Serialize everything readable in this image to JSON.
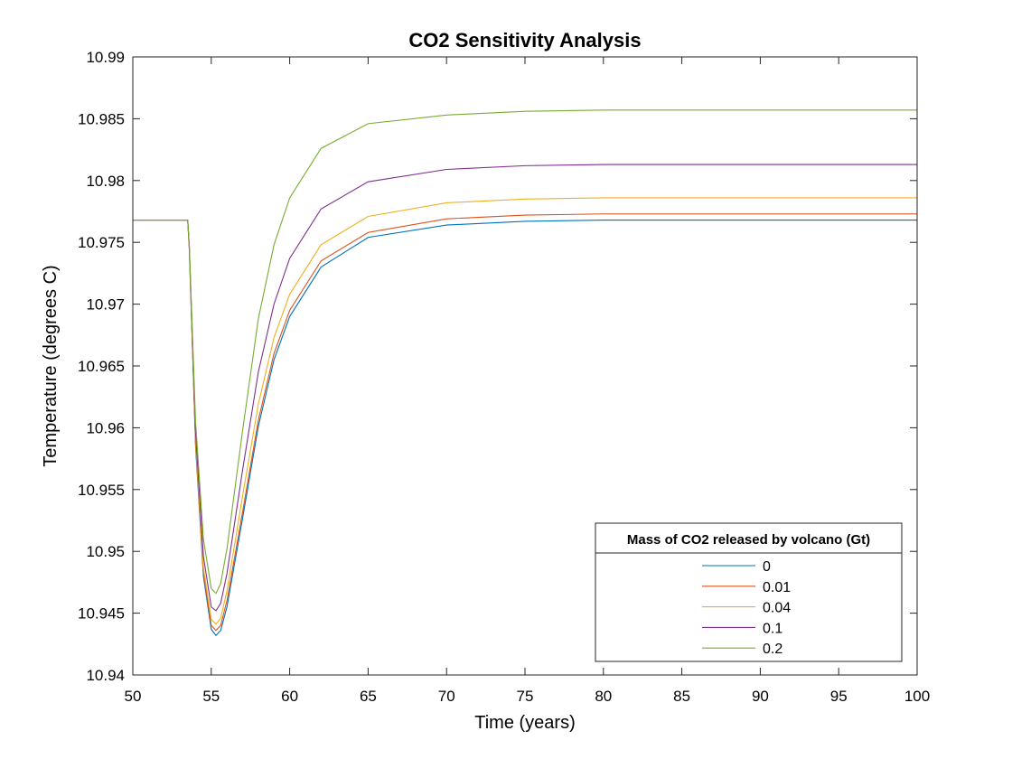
{
  "chart_data": {
    "type": "line",
    "title": "CO2 Sensitivity Analysis",
    "xlabel": "Time (years)",
    "ylabel": "Temperature (degrees C)",
    "xlim": [
      50,
      100
    ],
    "ylim": [
      10.94,
      10.99
    ],
    "xticks": [
      "50",
      "55",
      "60",
      "65",
      "70",
      "75",
      "80",
      "85",
      "90",
      "95",
      "100"
    ],
    "yticks": [
      "10.94",
      "10.945",
      "10.95",
      "10.955",
      "10.96",
      "10.965",
      "10.97",
      "10.975",
      "10.98",
      "10.985",
      "10.99"
    ],
    "grid": false,
    "legend": {
      "title": "Mass of CO2 released by volcano (Gt)",
      "location": "bottom-right"
    },
    "series": [
      {
        "name": "0",
        "color": "#0072BD",
        "points": [
          [
            50,
            10.9768
          ],
          [
            53.5,
            10.9768
          ],
          [
            53.6,
            10.9745
          ],
          [
            54,
            10.9585
          ],
          [
            54.5,
            10.948
          ],
          [
            55,
            10.9437
          ],
          [
            55.3,
            10.9432
          ],
          [
            55.6,
            10.9436
          ],
          [
            56,
            10.9455
          ],
          [
            57,
            10.9527
          ],
          [
            58,
            10.9601
          ],
          [
            59,
            10.9655
          ],
          [
            60,
            10.969
          ],
          [
            62,
            10.973
          ],
          [
            65,
            10.9754
          ],
          [
            70,
            10.9764
          ],
          [
            75,
            10.9767
          ],
          [
            80,
            10.9768
          ],
          [
            100,
            10.9768
          ]
        ]
      },
      {
        "name": "0.01",
        "color": "#D95319",
        "points": [
          [
            50,
            10.9768
          ],
          [
            53.5,
            10.9768
          ],
          [
            53.6,
            10.9745
          ],
          [
            54,
            10.9587
          ],
          [
            54.5,
            10.9483
          ],
          [
            55,
            10.944
          ],
          [
            55.3,
            10.9436
          ],
          [
            55.6,
            10.944
          ],
          [
            56,
            10.946
          ],
          [
            57,
            10.9532
          ],
          [
            58,
            10.9606
          ],
          [
            59,
            10.966
          ],
          [
            60,
            10.9695
          ],
          [
            62,
            10.9735
          ],
          [
            65,
            10.9758
          ],
          [
            70,
            10.9769
          ],
          [
            75,
            10.9772
          ],
          [
            80,
            10.9773
          ],
          [
            100,
            10.9773
          ]
        ]
      },
      {
        "name": "0.04",
        "color": "#EDB120",
        "points": [
          [
            50,
            10.9768
          ],
          [
            53.5,
            10.9768
          ],
          [
            53.6,
            10.9746
          ],
          [
            54,
            10.959
          ],
          [
            54.5,
            10.9487
          ],
          [
            55,
            10.9445
          ],
          [
            55.3,
            10.9441
          ],
          [
            55.6,
            10.9446
          ],
          [
            56,
            10.9468
          ],
          [
            57,
            10.9545
          ],
          [
            58,
            10.9619
          ],
          [
            59,
            10.9673
          ],
          [
            60,
            10.9708
          ],
          [
            62,
            10.9748
          ],
          [
            65,
            10.9771
          ],
          [
            70,
            10.9782
          ],
          [
            75,
            10.9785
          ],
          [
            80,
            10.9786
          ],
          [
            100,
            10.9786
          ]
        ]
      },
      {
        "name": "0.1",
        "color": "#7E2F8E",
        "points": [
          [
            50,
            10.9768
          ],
          [
            53.5,
            10.9768
          ],
          [
            53.6,
            10.9747
          ],
          [
            54,
            10.9596
          ],
          [
            54.5,
            10.9496
          ],
          [
            55,
            10.9455
          ],
          [
            55.3,
            10.9452
          ],
          [
            55.6,
            10.9458
          ],
          [
            56,
            10.9482
          ],
          [
            57,
            10.9566
          ],
          [
            58,
            10.9645
          ],
          [
            59,
            10.97
          ],
          [
            60,
            10.9737
          ],
          [
            62,
            10.9777
          ],
          [
            65,
            10.9799
          ],
          [
            70,
            10.9809
          ],
          [
            75,
            10.9812
          ],
          [
            80,
            10.9813
          ],
          [
            100,
            10.9813
          ]
        ]
      },
      {
        "name": "0.2",
        "color": "#77AC30",
        "points": [
          [
            50,
            10.9768
          ],
          [
            53.5,
            10.9768
          ],
          [
            53.6,
            10.9748
          ],
          [
            54,
            10.9605
          ],
          [
            54.5,
            10.951
          ],
          [
            55,
            10.947
          ],
          [
            55.3,
            10.9466
          ],
          [
            55.6,
            10.9474
          ],
          [
            56,
            10.9502
          ],
          [
            57,
            10.9598
          ],
          [
            58,
            10.9688
          ],
          [
            59,
            10.9748
          ],
          [
            60,
            10.9786
          ],
          [
            62,
            10.9826
          ],
          [
            65,
            10.9846
          ],
          [
            70,
            10.9853
          ],
          [
            75,
            10.9856
          ],
          [
            80,
            10.9857
          ],
          [
            100,
            10.9857
          ]
        ]
      }
    ]
  }
}
